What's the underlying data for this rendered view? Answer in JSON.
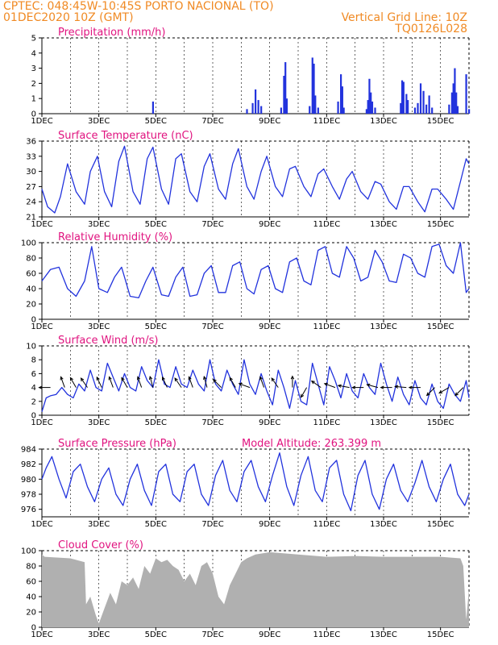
{
  "header": {
    "left_line1": "CPTEC:  048:45W-10:45S  PORTO NACIONAL (TO)",
    "left_line2": "01DEC2020 10Z (GMT)",
    "right_line1": "Vertical Grid Line: 10Z",
    "right_line2": "TQ0126L028"
  },
  "colors": {
    "header": "#f08a24",
    "title": "#e0137f",
    "line": "#2233dd",
    "cloud": "#b0b0b0",
    "arrow": "#000000"
  },
  "x_ticks": [
    "1DEC",
    "3DEC",
    "5DEC",
    "7DEC",
    "9DEC",
    "11DEC",
    "13DEC",
    "15DEC"
  ],
  "chart_data": [
    {
      "type": "bar",
      "title": "Precipitation (mm/h)",
      "x_unit": "day of Dec 2020",
      "xlim": [
        1,
        16
      ],
      "ylim": [
        0,
        5
      ],
      "yticks": [
        0,
        1,
        2,
        3,
        4,
        5
      ],
      "x": [
        4.9,
        8.2,
        8.4,
        8.5,
        8.6,
        8.7,
        9.4,
        9.5,
        9.55,
        9.6,
        10.4,
        10.5,
        10.55,
        10.6,
        10.7,
        11.4,
        11.5,
        11.55,
        11.6,
        12.4,
        12.45,
        12.5,
        12.55,
        12.6,
        12.7,
        13.6,
        13.65,
        13.7,
        13.8,
        13.85,
        14.1,
        14.2,
        14.3,
        14.4,
        14.5,
        14.6,
        14.7,
        15.3,
        15.4,
        15.45,
        15.5,
        15.55,
        15.6,
        15.9,
        16.0
      ],
      "values": [
        0.8,
        0.3,
        0.7,
        1.6,
        0.9,
        0.5,
        0.4,
        2.5,
        3.4,
        1.0,
        0.5,
        3.7,
        3.3,
        1.2,
        0.4,
        0.8,
        2.6,
        1.8,
        0.4,
        0.3,
        0.9,
        2.3,
        1.4,
        0.8,
        0.4,
        0.7,
        2.2,
        2.1,
        1.3,
        0.9,
        0.4,
        0.7,
        2.0,
        1.5,
        0.6,
        1.2,
        0.4,
        0.6,
        1.4,
        2.0,
        3.0,
        1.4,
        0.5,
        2.6,
        0.3
      ]
    },
    {
      "type": "line",
      "title": "Surface Temperature (nC)",
      "x_unit": "day of Dec 2020",
      "xlim": [
        1,
        16
      ],
      "ylim": [
        21,
        36
      ],
      "yticks": [
        21,
        24,
        27,
        30,
        33,
        36
      ],
      "x": [
        1.0,
        1.2,
        1.45,
        1.65,
        1.9,
        2.2,
        2.5,
        2.7,
        2.95,
        3.2,
        3.45,
        3.7,
        3.9,
        4.2,
        4.45,
        4.7,
        4.9,
        5.2,
        5.45,
        5.7,
        5.9,
        6.2,
        6.45,
        6.7,
        6.9,
        7.2,
        7.45,
        7.7,
        7.9,
        8.2,
        8.45,
        8.7,
        8.9,
        9.2,
        9.45,
        9.7,
        9.9,
        10.2,
        10.45,
        10.7,
        10.9,
        11.2,
        11.45,
        11.7,
        11.9,
        12.2,
        12.45,
        12.7,
        12.9,
        13.2,
        13.45,
        13.7,
        13.9,
        14.2,
        14.45,
        14.7,
        14.9,
        15.2,
        15.45,
        15.7,
        15.9,
        16.0
      ],
      "values": [
        26.5,
        23.0,
        21.8,
        25.0,
        31.5,
        26.0,
        23.5,
        30.0,
        33.0,
        26.0,
        23.0,
        32.0,
        35.0,
        26.0,
        23.5,
        32.5,
        34.8,
        26.5,
        23.5,
        32.5,
        33.5,
        26.0,
        24.0,
        31.0,
        33.5,
        26.5,
        24.5,
        31.5,
        34.5,
        27.0,
        24.5,
        30.0,
        33.0,
        27.0,
        25.0,
        30.5,
        31.0,
        27.0,
        25.0,
        29.5,
        30.5,
        27.0,
        24.5,
        28.5,
        30.0,
        26.0,
        24.5,
        28.0,
        27.5,
        24.0,
        22.5,
        27.0,
        27.0,
        24.0,
        22.0,
        26.5,
        26.5,
        24.5,
        22.5,
        28.0,
        32.5,
        31.5
      ]
    },
    {
      "type": "line",
      "title": "Relative Humidity (%)",
      "x_unit": "day of Dec 2020",
      "xlim": [
        1,
        16
      ],
      "ylim": [
        0,
        100
      ],
      "yticks": [
        0,
        20,
        40,
        60,
        80,
        100
      ],
      "x": [
        1.0,
        1.3,
        1.6,
        1.9,
        2.2,
        2.5,
        2.75,
        3.0,
        3.3,
        3.55,
        3.8,
        4.1,
        4.4,
        4.65,
        4.9,
        5.2,
        5.45,
        5.7,
        5.95,
        6.2,
        6.45,
        6.7,
        6.95,
        7.2,
        7.45,
        7.7,
        7.95,
        8.2,
        8.45,
        8.7,
        8.95,
        9.2,
        9.45,
        9.7,
        9.95,
        10.2,
        10.45,
        10.7,
        10.95,
        11.2,
        11.45,
        11.7,
        11.95,
        12.2,
        12.45,
        12.7,
        12.95,
        13.2,
        13.45,
        13.7,
        13.95,
        14.2,
        14.45,
        14.7,
        14.95,
        15.2,
        15.45,
        15.7,
        15.9,
        16.0
      ],
      "values": [
        50,
        65,
        68,
        40,
        30,
        50,
        95,
        40,
        35,
        55,
        68,
        30,
        28,
        50,
        68,
        32,
        30,
        55,
        68,
        30,
        32,
        60,
        70,
        35,
        35,
        70,
        75,
        40,
        33,
        65,
        70,
        40,
        35,
        75,
        80,
        50,
        45,
        90,
        95,
        60,
        55,
        95,
        80,
        50,
        55,
        90,
        75,
        50,
        48,
        85,
        80,
        60,
        55,
        95,
        98,
        70,
        60,
        100,
        35,
        40
      ]
    },
    {
      "type": "line",
      "title": "Surface Wind (m/s)",
      "x_unit": "day of Dec 2020",
      "xlim": [
        1,
        16
      ],
      "ylim": [
        0,
        10
      ],
      "yticks": [
        0,
        2,
        4,
        6,
        8,
        10
      ],
      "x": [
        1.0,
        1.15,
        1.3,
        1.5,
        1.7,
        1.9,
        2.1,
        2.3,
        2.5,
        2.7,
        2.9,
        3.1,
        3.3,
        3.5,
        3.7,
        3.9,
        4.1,
        4.3,
        4.5,
        4.7,
        4.9,
        5.1,
        5.3,
        5.5,
        5.7,
        5.9,
        6.1,
        6.3,
        6.5,
        6.7,
        6.9,
        7.1,
        7.3,
        7.5,
        7.7,
        7.9,
        8.1,
        8.3,
        8.5,
        8.7,
        8.9,
        9.1,
        9.3,
        9.5,
        9.7,
        9.9,
        10.1,
        10.3,
        10.5,
        10.7,
        10.9,
        11.1,
        11.3,
        11.5,
        11.7,
        11.9,
        12.1,
        12.3,
        12.5,
        12.7,
        12.9,
        13.1,
        13.3,
        13.5,
        13.7,
        13.9,
        14.1,
        14.3,
        14.5,
        14.7,
        14.9,
        15.1,
        15.3,
        15.5,
        15.7,
        15.9,
        16.0
      ],
      "values": [
        0.5,
        2.5,
        2.8,
        3.0,
        4.0,
        3.0,
        2.5,
        4.5,
        3.5,
        6.5,
        4.0,
        3.5,
        7.5,
        5.5,
        3.5,
        6.0,
        4.0,
        3.5,
        7.0,
        5.0,
        4.0,
        8.0,
        4.5,
        4.0,
        7.0,
        4.5,
        4.0,
        6.5,
        4.5,
        3.5,
        8.0,
        4.5,
        3.5,
        6.5,
        4.5,
        3.0,
        8.0,
        4.5,
        3.0,
        6.0,
        3.5,
        1.5,
        6.5,
        4.0,
        1.0,
        5.0,
        2.0,
        1.5,
        7.5,
        4.5,
        1.5,
        7.0,
        5.0,
        2.5,
        6.0,
        3.5,
        2.5,
        6.0,
        4.0,
        3.0,
        7.5,
        4.5,
        2.0,
        5.5,
        3.0,
        1.5,
        5.0,
        2.5,
        1.5,
        4.5,
        2.0,
        1.0,
        4.5,
        3.0,
        2.0,
        5.0,
        2.5
      ]
    },
    {
      "type": "line",
      "title": "Surface Pressure (hPa)",
      "annotation": "Model Altitude: 263.399 m",
      "x_unit": "day of Dec 2020",
      "xlim": [
        1,
        16
      ],
      "ylim": [
        975,
        984
      ],
      "yticks": [
        976,
        978,
        980,
        982,
        984
      ],
      "x": [
        1.0,
        1.15,
        1.35,
        1.6,
        1.85,
        2.1,
        2.35,
        2.6,
        2.85,
        3.1,
        3.35,
        3.6,
        3.85,
        4.1,
        4.35,
        4.6,
        4.85,
        5.1,
        5.35,
        5.6,
        5.85,
        6.1,
        6.35,
        6.6,
        6.85,
        7.1,
        7.35,
        7.6,
        7.85,
        8.1,
        8.35,
        8.6,
        8.85,
        9.1,
        9.35,
        9.6,
        9.85,
        10.1,
        10.35,
        10.6,
        10.85,
        11.1,
        11.35,
        11.6,
        11.85,
        12.1,
        12.35,
        12.6,
        12.85,
        13.1,
        13.35,
        13.6,
        13.85,
        14.1,
        14.35,
        14.6,
        14.85,
        15.1,
        15.35,
        15.6,
        15.85,
        16.0
      ],
      "values": [
        980.0,
        981.5,
        983.0,
        980.0,
        977.5,
        981.0,
        982.0,
        979.0,
        977.0,
        980.0,
        981.5,
        978.0,
        976.5,
        980.0,
        982.0,
        978.5,
        976.5,
        981.0,
        982.0,
        978.0,
        977.0,
        981.0,
        982.0,
        978.0,
        976.5,
        980.5,
        982.5,
        978.5,
        977.0,
        981.0,
        982.5,
        979.0,
        977.0,
        980.5,
        983.5,
        979.0,
        976.5,
        980.5,
        983.0,
        978.5,
        977.0,
        981.5,
        982.5,
        978.0,
        975.8,
        980.5,
        982.5,
        978.0,
        976.0,
        980.0,
        982.0,
        978.5,
        977.0,
        979.5,
        982.5,
        979.0,
        977.0,
        980.0,
        982.0,
        978.0,
        976.5,
        978.0
      ]
    },
    {
      "type": "area",
      "title": "Cloud Cover (%)",
      "x_unit": "day of Dec 2020",
      "xlim": [
        1,
        16
      ],
      "ylim": [
        0,
        100
      ],
      "yticks": [
        0,
        20,
        40,
        60,
        80,
        100
      ],
      "x": [
        1.0,
        1.1,
        2.0,
        2.5,
        2.55,
        2.7,
        2.9,
        3.0,
        3.2,
        3.4,
        3.6,
        3.8,
        4.0,
        4.2,
        4.4,
        4.6,
        4.8,
        5.0,
        5.2,
        5.4,
        5.6,
        5.8,
        6.0,
        6.2,
        6.4,
        6.6,
        6.8,
        7.0,
        7.2,
        7.4,
        7.6,
        7.8,
        8.0,
        8.2,
        8.5,
        9.0,
        10.0,
        11.0,
        12.0,
        13.0,
        14.0,
        15.0,
        15.7,
        15.8,
        15.9,
        16.0
      ],
      "values": [
        95,
        92,
        90,
        85,
        30,
        40,
        15,
        5,
        25,
        45,
        30,
        60,
        55,
        65,
        50,
        80,
        70,
        90,
        85,
        88,
        80,
        75,
        60,
        70,
        55,
        80,
        85,
        70,
        40,
        30,
        55,
        70,
        85,
        90,
        95,
        98,
        95,
        92,
        93,
        92,
        92,
        92,
        90,
        80,
        10,
        50
      ]
    }
  ],
  "wind_arrows": {
    "x": [
      1.3,
      1.8,
      2.2,
      2.6,
      3.1,
      3.5,
      4.0,
      4.5,
      4.9,
      5.4,
      5.9,
      6.3,
      6.8,
      7.3,
      7.8,
      8.3,
      8.8,
      9.3,
      9.8,
      10.3,
      10.8,
      11.3,
      11.8,
      12.3,
      12.8,
      13.3,
      13.8,
      14.3,
      14.8,
      15.3,
      15.8
    ],
    "dir_deg": [
      180,
      250,
      240,
      235,
      245,
      250,
      240,
      250,
      255,
      245,
      235,
      250,
      255,
      225,
      240,
      200,
      250,
      235,
      270,
      120,
      215,
      200,
      190,
      180,
      195,
      180,
      185,
      180,
      135,
      150,
      135
    ]
  }
}
